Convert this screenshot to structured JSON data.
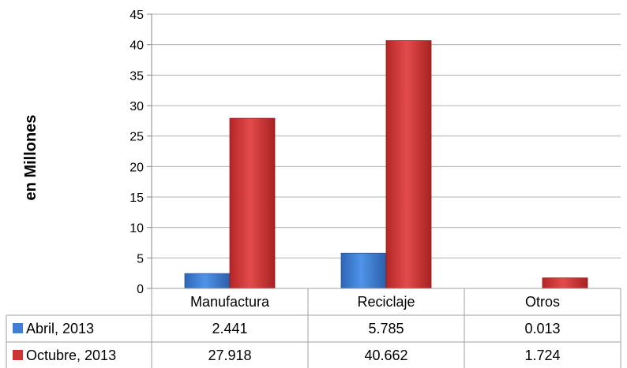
{
  "chart_data": {
    "type": "bar",
    "title": "",
    "xlabel": "",
    "ylabel": "en Millones",
    "ylim": [
      0,
      45
    ],
    "yticks": [
      0,
      5,
      10,
      15,
      20,
      25,
      30,
      35,
      40,
      45
    ],
    "grid": true,
    "legend": "data-table-left",
    "categories": [
      "Manufactura",
      "Reciclaje",
      "Otros"
    ],
    "series": [
      {
        "name": "Abril, 2013",
        "color": "#3f7fd6",
        "values": [
          2.441,
          5.785,
          0.013
        ],
        "labels": [
          "2.441",
          "5.785",
          "0.013"
        ]
      },
      {
        "name": "Octubre, 2013",
        "color": "#cf3434",
        "values": [
          27.918,
          40.662,
          1.724
        ],
        "labels": [
          "27.918",
          "40.662",
          "1.724"
        ]
      }
    ]
  }
}
